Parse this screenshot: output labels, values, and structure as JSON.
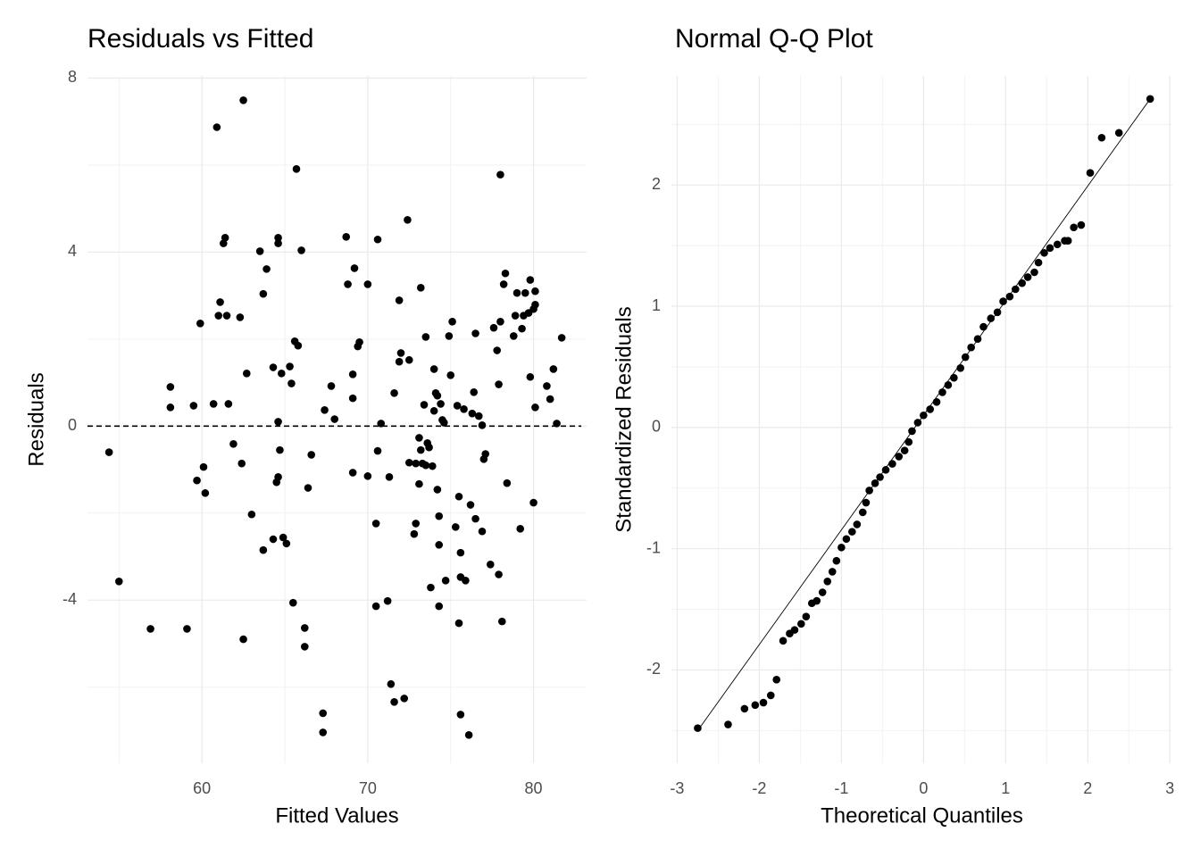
{
  "chart_data": [
    {
      "type": "scatter",
      "title": "Residuals vs Fitted",
      "xlabel": "Fitted Values",
      "ylabel": "Residuals",
      "color": "#000000",
      "grid": true,
      "xlim": [
        53.1,
        83.2
      ],
      "ylim": [
        -7.75,
        8.05
      ],
      "xticks": [
        60,
        70,
        80
      ],
      "yticks": [
        -4,
        0,
        4,
        8
      ],
      "hline": 0,
      "x": [
        54.4,
        55.0,
        56.9,
        58.1,
        58.1,
        59.1,
        59.5,
        59.7,
        59.9,
        60.1,
        60.2,
        60.7,
        60.9,
        61.0,
        61.1,
        61.3,
        61.4,
        61.5,
        61.6,
        61.9,
        62.3,
        62.4,
        62.5,
        62.5,
        62.7,
        63.0,
        63.5,
        63.7,
        63.7,
        63.9,
        64.3,
        64.3,
        64.5,
        64.6,
        64.6,
        64.6,
        64.6,
        64.7,
        64.8,
        64.9,
        65.1,
        65.3,
        65.4,
        65.5,
        65.6,
        65.7,
        65.8,
        66.0,
        66.2,
        66.2,
        66.4,
        66.6,
        67.3,
        67.3,
        67.4,
        67.8,
        68.0,
        68.7,
        68.8,
        69.1,
        69.1,
        69.1,
        69.2,
        69.4,
        69.5,
        70.0,
        70.0,
        70.5,
        70.5,
        70.6,
        70.6,
        70.8,
        71.2,
        71.3,
        71.4,
        71.6,
        71.6,
        71.9,
        71.9,
        72.0,
        72.2,
        72.4,
        72.5,
        72.5,
        72.8,
        72.9,
        72.9,
        73.1,
        73.1,
        73.2,
        73.2,
        73.3,
        73.4,
        73.5,
        73.5,
        73.6,
        73.7,
        73.8,
        73.9,
        74.0,
        74.0,
        74.1,
        74.2,
        74.2,
        74.3,
        74.3,
        74.3,
        74.4,
        74.5,
        74.6,
        74.7,
        74.9,
        75.0,
        75.1,
        75.3,
        75.4,
        75.5,
        75.5,
        75.6,
        75.6,
        75.6,
        75.8,
        75.9,
        76.1,
        76.2,
        76.3,
        76.4,
        76.5,
        76.5,
        76.7,
        76.9,
        76.9,
        77.0,
        77.1,
        77.4,
        77.6,
        77.8,
        77.9,
        77.9,
        78.0,
        78.0,
        78.1,
        78.2,
        78.3,
        78.4,
        78.8,
        78.9,
        79.0,
        79.2,
        79.3,
        79.4,
        79.5,
        79.7,
        79.8,
        79.8,
        80.0,
        80.0,
        80.1,
        80.1,
        80.1,
        80.8,
        81.0,
        81.2,
        81.4,
        81.7
      ],
      "y": [
        -0.6,
        -3.57,
        -4.66,
        0.9,
        0.43,
        -4.66,
        0.47,
        -1.25,
        2.36,
        -0.94,
        -1.54,
        0.51,
        6.87,
        2.54,
        2.85,
        4.2,
        4.33,
        2.54,
        0.51,
        -0.41,
        2.5,
        -0.86,
        7.49,
        -4.9,
        1.21,
        -2.03,
        4.02,
        -2.85,
        3.04,
        3.61,
        1.35,
        -2.6,
        -1.29,
        -1.17,
        4.2,
        4.33,
        0.1,
        -0.55,
        1.21,
        -2.56,
        -2.7,
        1.37,
        0.98,
        -4.06,
        1.95,
        5.91,
        1.85,
        4.04,
        -4.64,
        -5.07,
        -1.42,
        -0.66,
        -6.6,
        -7.04,
        0.37,
        0.92,
        0.16,
        4.35,
        3.26,
        -1.07,
        0.64,
        1.19,
        3.63,
        1.83,
        1.93,
        3.26,
        -1.15,
        -2.24,
        -4.14,
        4.29,
        -0.57,
        0.06,
        -4.02,
        -1.17,
        -5.93,
        -6.34,
        0.76,
        2.89,
        1.48,
        1.68,
        -6.26,
        4.74,
        1.52,
        -0.84,
        -2.48,
        -2.24,
        -0.86,
        -0.27,
        -1.33,
        3.18,
        -0.55,
        -0.86,
        0.49,
        2.05,
        -0.9,
        -0.39,
        -0.49,
        -3.71,
        -0.92,
        1.31,
        0.35,
        0.76,
        -1.46,
        0.7,
        -4.14,
        -2.73,
        -2.07,
        0.51,
        0.14,
        0.08,
        -3.55,
        2.07,
        1.17,
        2.4,
        -2.32,
        0.47,
        -4.53,
        -1.62,
        -2.91,
        -3.47,
        -6.63,
        0.39,
        -3.55,
        -7.1,
        -1.81,
        0.29,
        0.78,
        2.13,
        -2.13,
        0.23,
        0.02,
        -2.42,
        -0.76,
        -0.64,
        -3.18,
        2.26,
        1.74,
        -3.41,
        0.96,
        5.78,
        2.4,
        -4.49,
        3.26,
        3.51,
        -1.31,
        2.07,
        2.54,
        3.06,
        -2.36,
        2.24,
        2.54,
        3.06,
        2.6,
        3.36,
        1.13,
        2.69,
        -1.76,
        0.43,
        3.1,
        2.79,
        0.92,
        0.62,
        1.31,
        0.06,
        2.03
      ]
    },
    {
      "type": "scatter",
      "title": "Normal Q-Q Plot",
      "xlabel": "Theoretical Quantiles",
      "ylabel": "Standardized Residuals",
      "color": "#000000",
      "grid": true,
      "xlim": [
        -3.07,
        3.03
      ],
      "ylim": [
        -2.77,
        2.9
      ],
      "xticks": [
        -3,
        -2,
        -1,
        0,
        1,
        2,
        3
      ],
      "yticks": [
        -2,
        -1,
        0,
        1,
        2
      ],
      "refline": {
        "x": [
          -2.75,
          2.76
        ],
        "y": [
          -2.5,
          2.71
        ]
      },
      "x": [
        -2.75,
        -2.38,
        -2.18,
        -2.05,
        -1.95,
        -1.86,
        -1.79,
        -1.71,
        -1.63,
        -1.57,
        -1.49,
        -1.43,
        -1.36,
        -1.3,
        -1.23,
        -1.17,
        -1.11,
        -1.06,
        -1.0,
        -0.94,
        -0.87,
        -0.81,
        -0.74,
        -0.7,
        -0.66,
        -0.59,
        -0.53,
        -0.46,
        -0.38,
        -0.3,
        -0.23,
        -0.18,
        -0.14,
        -0.07,
        0.0,
        0.08,
        0.16,
        0.23,
        0.3,
        0.37,
        0.45,
        0.51,
        0.58,
        0.66,
        0.73,
        0.82,
        0.9,
        0.97,
        1.05,
        1.12,
        1.2,
        1.27,
        1.35,
        1.4,
        1.47,
        1.54,
        1.63,
        1.72,
        1.76,
        1.83,
        1.92,
        2.03,
        2.17,
        2.38,
        2.76
      ],
      "y": [
        -2.48,
        -2.45,
        -2.32,
        -2.29,
        -2.27,
        -2.21,
        -2.08,
        -1.76,
        -1.7,
        -1.67,
        -1.62,
        -1.56,
        -1.45,
        -1.43,
        -1.36,
        -1.27,
        -1.19,
        -1.1,
        -0.99,
        -0.92,
        -0.86,
        -0.8,
        -0.7,
        -0.62,
        -0.52,
        -0.46,
        -0.41,
        -0.35,
        -0.3,
        -0.24,
        -0.19,
        -0.12,
        -0.03,
        0.04,
        0.1,
        0.15,
        0.21,
        0.29,
        0.35,
        0.41,
        0.49,
        0.58,
        0.66,
        0.73,
        0.83,
        0.9,
        0.95,
        1.04,
        1.08,
        1.14,
        1.19,
        1.24,
        1.28,
        1.36,
        1.44,
        1.48,
        1.51,
        1.54,
        1.54,
        1.65,
        1.67,
        2.1,
        2.39,
        2.43,
        2.71
      ]
    }
  ]
}
